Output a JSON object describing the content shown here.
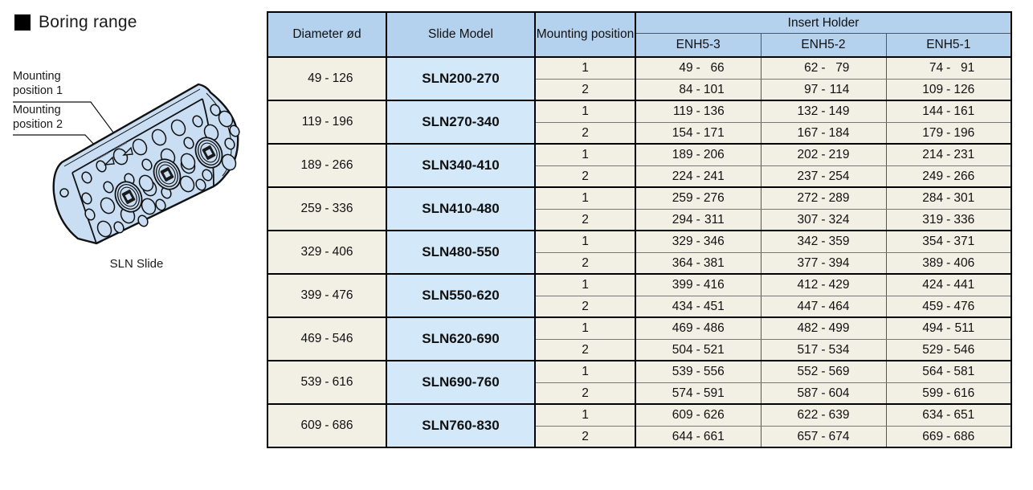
{
  "page": {
    "title": "Boring range",
    "colors": {
      "header_blue": "#b4d1ee",
      "model_cell_blue": "#d3e9f9",
      "row_cream": "#f2efe4",
      "slide_body_blue": "#c9ddf3",
      "border_black": "#000000",
      "border_gray": "#777777"
    }
  },
  "illustration": {
    "caption": "SLN Slide",
    "labels": [
      "Mounting position 1",
      "Mounting position 2"
    ]
  },
  "table": {
    "columns": [
      "Diameter ød",
      "Slide Model",
      "Mounting position"
    ],
    "insert_holder_label": "Insert Holder",
    "insert_holder_columns": [
      "ENH5-3",
      "ENH5-2",
      "ENH5-1"
    ],
    "groups": [
      {
        "diameter": [
          "49",
          "126"
        ],
        "model": "SLN200-270",
        "rows": [
          {
            "position": "1",
            "holders": [
              [
                "49",
                "66"
              ],
              [
                "62",
                "79"
              ],
              [
                "74",
                "91"
              ]
            ]
          },
          {
            "position": "2",
            "holders": [
              [
                "84",
                "101"
              ],
              [
                "97",
                "114"
              ],
              [
                "109",
                "126"
              ]
            ]
          }
        ]
      },
      {
        "diameter": [
          "119",
          "196"
        ],
        "model": "SLN270-340",
        "rows": [
          {
            "position": "1",
            "holders": [
              [
                "119",
                "136"
              ],
              [
                "132",
                "149"
              ],
              [
                "144",
                "161"
              ]
            ]
          },
          {
            "position": "2",
            "holders": [
              [
                "154",
                "171"
              ],
              [
                "167",
                "184"
              ],
              [
                "179",
                "196"
              ]
            ]
          }
        ]
      },
      {
        "diameter": [
          "189",
          "266"
        ],
        "model": "SLN340-410",
        "rows": [
          {
            "position": "1",
            "holders": [
              [
                "189",
                "206"
              ],
              [
                "202",
                "219"
              ],
              [
                "214",
                "231"
              ]
            ]
          },
          {
            "position": "2",
            "holders": [
              [
                "224",
                "241"
              ],
              [
                "237",
                "254"
              ],
              [
                "249",
                "266"
              ]
            ]
          }
        ]
      },
      {
        "diameter": [
          "259",
          "336"
        ],
        "model": "SLN410-480",
        "rows": [
          {
            "position": "1",
            "holders": [
              [
                "259",
                "276"
              ],
              [
                "272",
                "289"
              ],
              [
                "284",
                "301"
              ]
            ]
          },
          {
            "position": "2",
            "holders": [
              [
                "294",
                "311"
              ],
              [
                "307",
                "324"
              ],
              [
                "319",
                "336"
              ]
            ]
          }
        ]
      },
      {
        "diameter": [
          "329",
          "406"
        ],
        "model": "SLN480-550",
        "rows": [
          {
            "position": "1",
            "holders": [
              [
                "329",
                "346"
              ],
              [
                "342",
                "359"
              ],
              [
                "354",
                "371"
              ]
            ]
          },
          {
            "position": "2",
            "holders": [
              [
                "364",
                "381"
              ],
              [
                "377",
                "394"
              ],
              [
                "389",
                "406"
              ]
            ]
          }
        ]
      },
      {
        "diameter": [
          "399",
          "476"
        ],
        "model": "SLN550-620",
        "rows": [
          {
            "position": "1",
            "holders": [
              [
                "399",
                "416"
              ],
              [
                "412",
                "429"
              ],
              [
                "424",
                "441"
              ]
            ]
          },
          {
            "position": "2",
            "holders": [
              [
                "434",
                "451"
              ],
              [
                "447",
                "464"
              ],
              [
                "459",
                "476"
              ]
            ]
          }
        ]
      },
      {
        "diameter": [
          "469",
          "546"
        ],
        "model": "SLN620-690",
        "rows": [
          {
            "position": "1",
            "holders": [
              [
                "469",
                "486"
              ],
              [
                "482",
                "499"
              ],
              [
                "494",
                "511"
              ]
            ]
          },
          {
            "position": "2",
            "holders": [
              [
                "504",
                "521"
              ],
              [
                "517",
                "534"
              ],
              [
                "529",
                "546"
              ]
            ]
          }
        ]
      },
      {
        "diameter": [
          "539",
          "616"
        ],
        "model": "SLN690-760",
        "rows": [
          {
            "position": "1",
            "holders": [
              [
                "539",
                "556"
              ],
              [
                "552",
                "569"
              ],
              [
                "564",
                "581"
              ]
            ]
          },
          {
            "position": "2",
            "holders": [
              [
                "574",
                "591"
              ],
              [
                "587",
                "604"
              ],
              [
                "599",
                "616"
              ]
            ]
          }
        ]
      },
      {
        "diameter": [
          "609",
          "686"
        ],
        "model": "SLN760-830",
        "rows": [
          {
            "position": "1",
            "holders": [
              [
                "609",
                "626"
              ],
              [
                "622",
                "639"
              ],
              [
                "634",
                "651"
              ]
            ]
          },
          {
            "position": "2",
            "holders": [
              [
                "644",
                "661"
              ],
              [
                "657",
                "674"
              ],
              [
                "669",
                "686"
              ]
            ]
          }
        ]
      }
    ]
  }
}
